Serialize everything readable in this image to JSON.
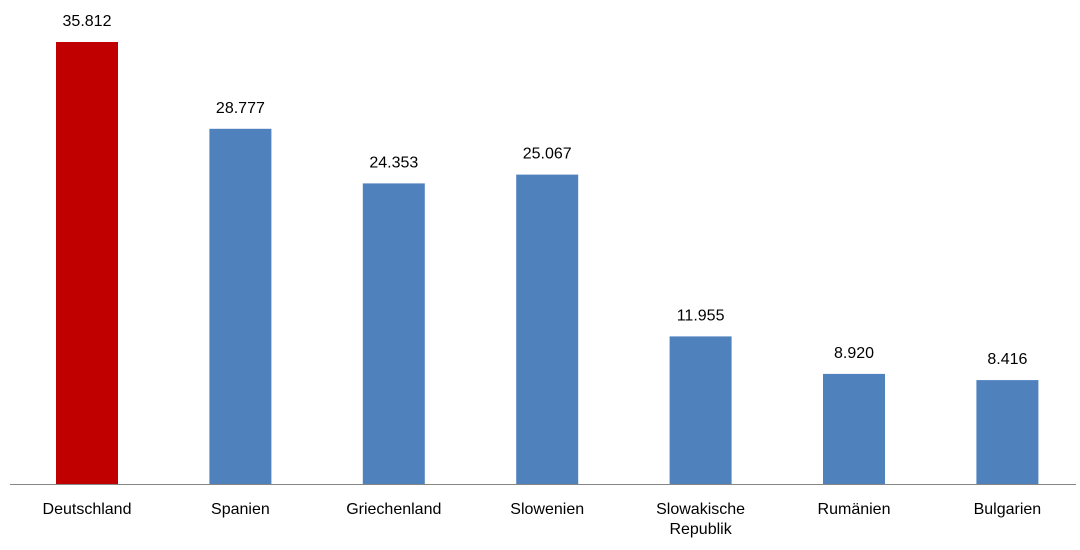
{
  "chart_data": {
    "type": "bar",
    "categories": [
      "Deutschland",
      "Spanien",
      "Griechenland",
      "Slowenien",
      "Slowakische Republik",
      "Rumänien",
      "Bulgarien"
    ],
    "category_lines": [
      [
        "Deutschland"
      ],
      [
        "Spanien"
      ],
      [
        "Griechenland"
      ],
      [
        "Slowenien"
      ],
      [
        "Slowakische",
        "Republik"
      ],
      [
        "Rumänien"
      ],
      [
        "Bulgarien"
      ]
    ],
    "values": [
      35.812,
      28.777,
      24.353,
      25.067,
      11.955,
      8.92,
      8.416
    ],
    "value_labels": [
      "35.812",
      "28.777",
      "24.353",
      "25.067",
      "11.955",
      "8.920",
      "8.416"
    ],
    "bar_colors": [
      "#c00000",
      "#4f81bd",
      "#4f81bd",
      "#4f81bd",
      "#4f81bd",
      "#4f81bd",
      "#4f81bd"
    ],
    "axis_color": "#868686",
    "ylim": [
      0,
      40
    ],
    "grid": false,
    "title": "",
    "xlabel": "",
    "ylabel": ""
  }
}
